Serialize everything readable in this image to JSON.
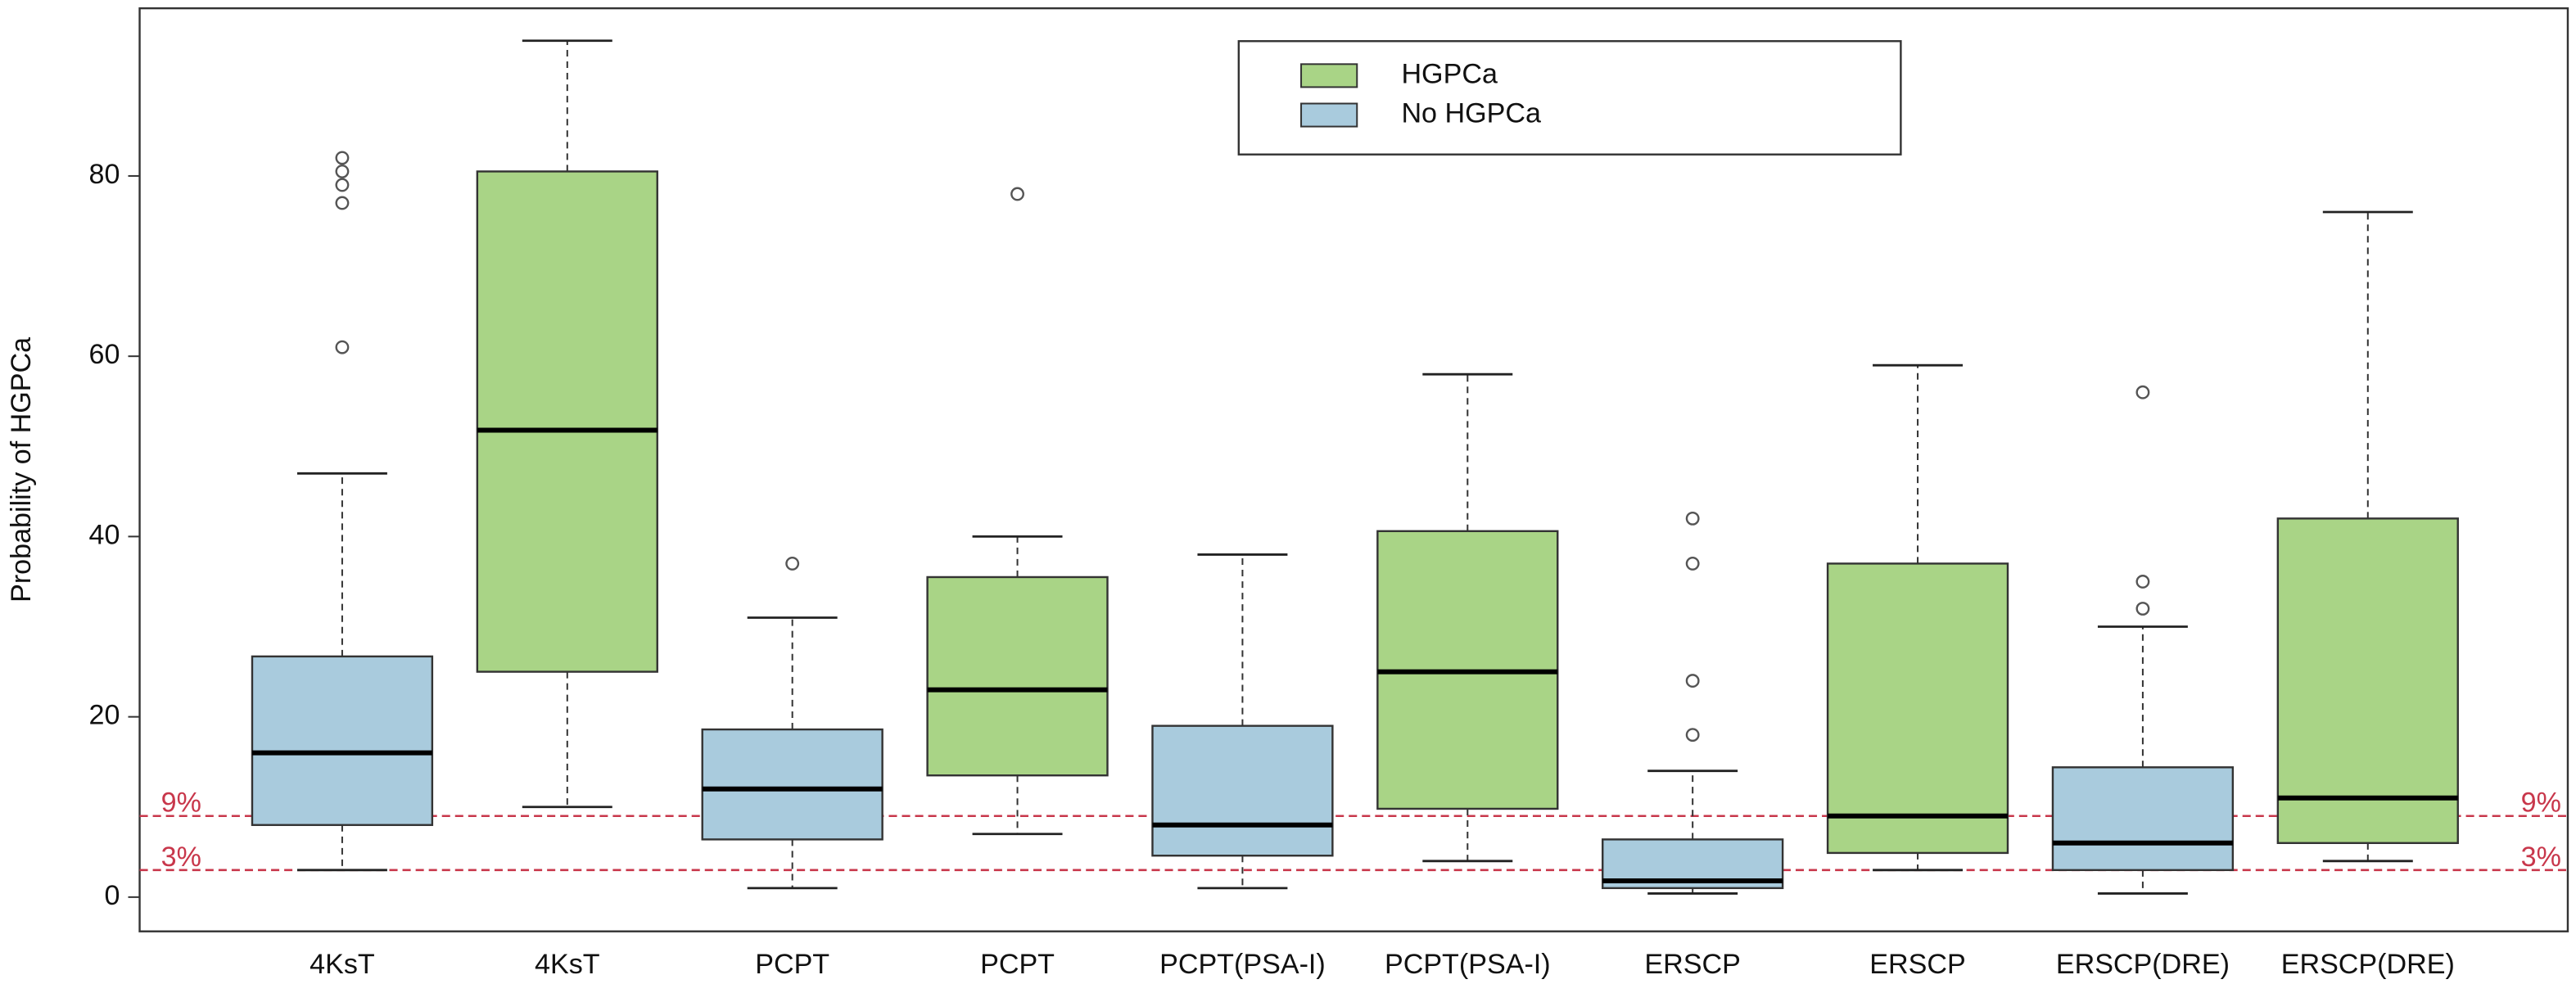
{
  "chart_data": {
    "type": "box",
    "y_label": "Probability of HGPCa",
    "ylim": [
      -3.8,
      98.6
    ],
    "yticks": [
      0,
      20,
      40,
      60,
      80
    ],
    "categories": [
      "4KsT",
      "4KsT",
      "PCPT",
      "PCPT",
      "PCPT(PSA-I)",
      "PCPT(PSA-I)",
      "ERSCP",
      "ERSCP",
      "ERSCP(DRE)",
      "ERSCP(DRE)"
    ],
    "series": [
      {
        "name": "HGPCa",
        "color": "#a9d486",
        "boxes": [
          null,
          {
            "low": 10,
            "q1": 25,
            "median": 51.8,
            "q3": 80.5,
            "high": 95,
            "outliers": []
          },
          null,
          {
            "low": 7,
            "q1": 13.5,
            "median": 23,
            "q3": 35.5,
            "high": 40,
            "outliers": [
              78
            ]
          },
          null,
          {
            "low": 4,
            "q1": 9.8,
            "median": 25,
            "q3": 40.6,
            "high": 58,
            "outliers": []
          },
          null,
          {
            "low": 3,
            "q1": 4.9,
            "median": 9,
            "q3": 37,
            "high": 59,
            "outliers": []
          },
          null,
          {
            "low": 4,
            "q1": 6,
            "median": 11,
            "q3": 42,
            "high": 76,
            "outliers": []
          }
        ]
      },
      {
        "name": "No HGPCa",
        "color": "#a9cbdd",
        "boxes": [
          {
            "low": 3,
            "q1": 8,
            "median": 16,
            "q3": 26.7,
            "high": 47,
            "outliers": [
              61,
              77,
              79,
              80.5,
              82
            ]
          },
          null,
          {
            "low": 1,
            "q1": 6.4,
            "median": 12,
            "q3": 18.6,
            "high": 31,
            "outliers": [
              37
            ]
          },
          null,
          {
            "low": 1,
            "q1": 4.6,
            "median": 8,
            "q3": 19,
            "high": 38,
            "outliers": []
          },
          null,
          {
            "low": 0.4,
            "q1": 1,
            "median": 1.8,
            "q3": 6.4,
            "high": 14,
            "outliers": [
              18,
              24,
              37,
              42
            ]
          },
          null,
          {
            "low": 0.4,
            "q1": 3,
            "median": 6,
            "q3": 14.4,
            "high": 30,
            "outliers": [
              32,
              35,
              56
            ]
          },
          null
        ]
      }
    ],
    "reference_lines": [
      {
        "value": 9,
        "label": "9%"
      },
      {
        "value": 3,
        "label": "3%"
      }
    ],
    "reference_color": "#c8374b",
    "legend": "top-center"
  }
}
